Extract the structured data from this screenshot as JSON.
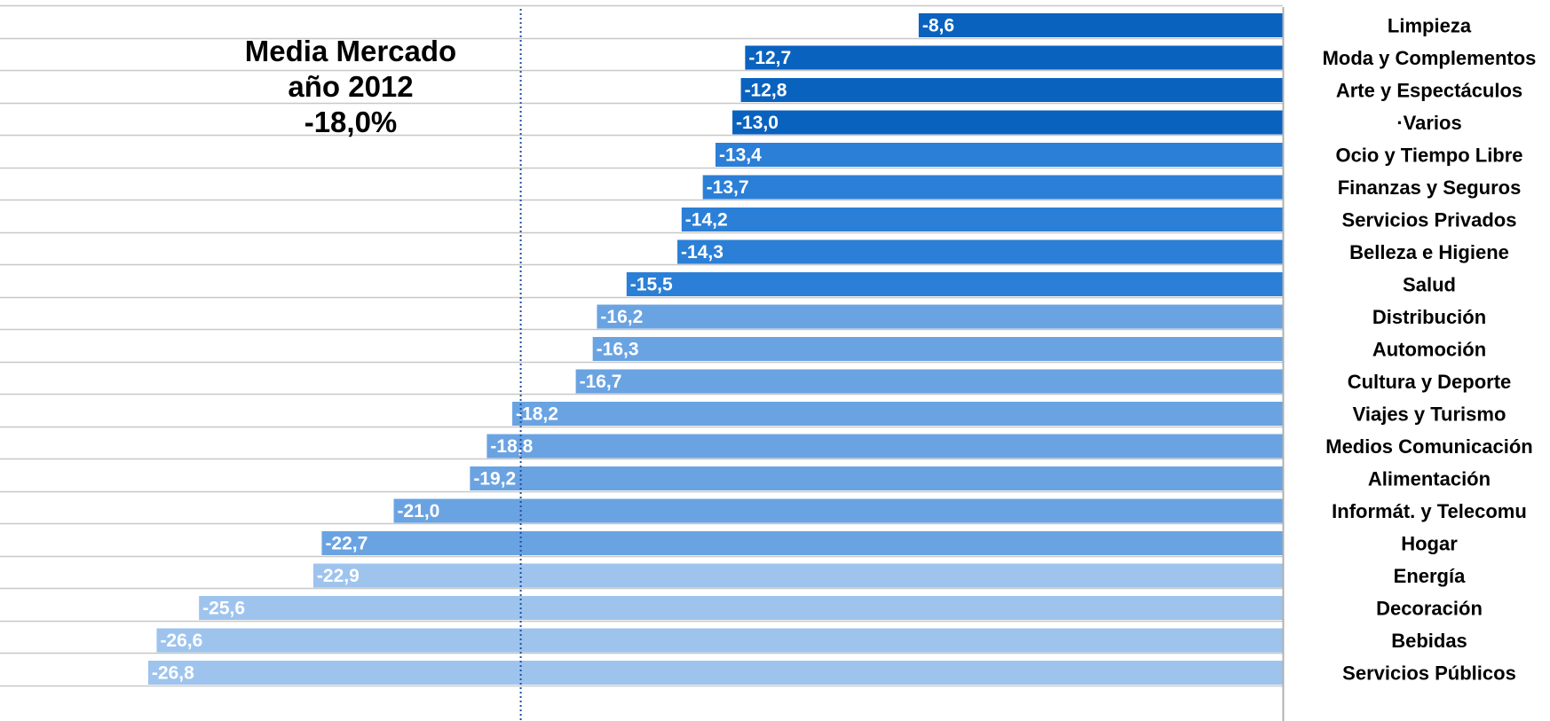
{
  "annotation": {
    "line1": "Media Mercado",
    "line2": "año 2012",
    "line3": "-18,0%"
  },
  "chart_data": {
    "type": "bar",
    "orientation": "horizontal",
    "categories": [
      "Limpieza",
      "Moda y Complementos",
      "Arte y Espectáculos",
      "·Varios",
      "Ocio y Tiempo Libre",
      "Finanzas y Seguros",
      "Servicios Privados",
      "Belleza e Higiene",
      "Salud",
      "Distribución",
      "Automoción",
      "Cultura y Deporte",
      "Viajes y Turismo",
      "Medios Comunicación",
      "Alimentación",
      "Informát. y Telecomu",
      "Hogar",
      "Energía",
      "Decoración",
      "Bebidas",
      "Servicios Públicos"
    ],
    "values": [
      -8.6,
      -12.7,
      -12.8,
      -13.0,
      -13.4,
      -13.7,
      -14.2,
      -14.3,
      -15.5,
      -16.2,
      -16.3,
      -16.7,
      -18.2,
      -18.8,
      -19.2,
      -21.0,
      -22.7,
      -22.9,
      -25.6,
      -26.6,
      -26.8
    ],
    "value_labels": [
      "-8,6",
      "-12,7",
      "-12,8",
      "-13,0",
      "-13,4",
      "-13,7",
      "-14,2",
      "-14,3",
      "-15,5",
      "-16,2",
      "-16,3",
      "-16,7",
      "-18,2",
      "-18,8",
      "-19,2",
      "-21,0",
      "-22,7",
      "-22,9",
      "-25,6",
      "-26,6",
      "-26,8"
    ],
    "colors": [
      "#0a62bf",
      "#0a62bf",
      "#0a62bf",
      "#0a62bf",
      "#2b7fd6",
      "#2b7fd6",
      "#2b7fd6",
      "#2b7fd6",
      "#2b7fd6",
      "#6aa3e2",
      "#6aa3e2",
      "#6aa3e2",
      "#6aa3e2",
      "#6aa3e2",
      "#6aa3e2",
      "#6aa3e2",
      "#6aa3e2",
      "#9ec4ee",
      "#9ec4ee",
      "#9ec4ee",
      "#9ec4ee"
    ],
    "reference_line": {
      "value": -18.0
    },
    "xlim": [
      -30.3,
      0
    ],
    "gridlines": true,
    "legend": "none"
  }
}
